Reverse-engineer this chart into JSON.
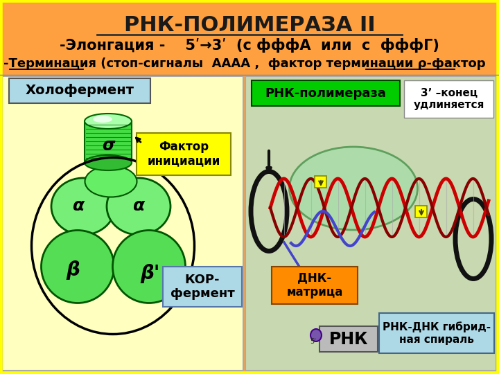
{
  "background_color": "#FFA040",
  "title": "РНК-ПОЛИМЕРАЗА II",
  "title_fontsize": 22,
  "line2": "-Элонгация -    5ʹ→3ʹ  (с фффА  или  с  фффГ)",
  "line2_fontsize": 15,
  "line3": "-Терминация (стоп-сигналы  АААА ,  фактор терминации ρ-фактор",
  "line3_fontsize": 13,
  "left_label": "Холофермент",
  "left_label_bg": "#ADD8E6",
  "right_kor_label": "КОР-\nфермент",
  "right_kor_bg": "#ADD8E6",
  "factor_label": "Фактор\nинициации",
  "factor_bg": "#FFFF00",
  "rnk_pol_label": "РНК-полимераза",
  "rnk_pol_bg": "#00CC00",
  "end_label": "3’ –конец\nудлиняется",
  "end_bg": "#FFFFFF",
  "dnk_label": "ДНК-\nматрица",
  "dnk_bg": "#FF8C00",
  "rnk_label": "РНК",
  "hybrid_label": "РНК-ДНК гибрид-\nная спираль",
  "hybrid_bg": "#ADD8E6",
  "left_panel_bg": "#FFFFC0",
  "right_panel_bg": "#C8D8B0",
  "outer_border": "#FFFF00"
}
